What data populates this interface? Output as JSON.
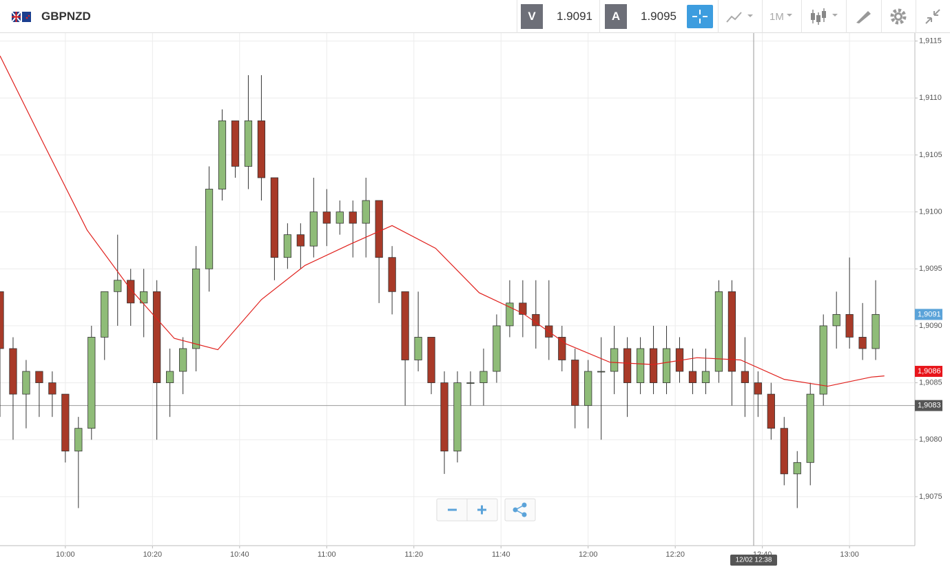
{
  "header": {
    "symbol": "GBPNZD",
    "sell_label": "V",
    "sell_price": "1.9091",
    "buy_label": "A",
    "buy_price": "1.9095",
    "timeframe": "1M"
  },
  "chart_data": {
    "type": "candlestick",
    "x": [
      "09:45",
      "09:48",
      "09:51",
      "09:54",
      "09:57",
      "10:00",
      "10:03",
      "10:06",
      "10:09",
      "10:12",
      "10:15",
      "10:18",
      "10:21",
      "10:24",
      "10:27",
      "10:30",
      "10:33",
      "10:36",
      "10:39",
      "10:42",
      "10:45",
      "10:48",
      "10:51",
      "10:54",
      "10:57",
      "11:00",
      "11:03",
      "11:06",
      "11:09",
      "11:12",
      "11:15",
      "11:18",
      "11:21",
      "11:24",
      "11:27",
      "11:30",
      "11:33",
      "11:36",
      "11:39",
      "11:42",
      "11:45",
      "11:48",
      "11:51",
      "11:54",
      "11:57",
      "12:00",
      "12:03",
      "12:06",
      "12:09",
      "12:12",
      "12:15",
      "12:18",
      "12:21",
      "12:24",
      "12:27",
      "12:30",
      "12:33",
      "12:36",
      "12:39",
      "12:42",
      "12:45",
      "12:48",
      "12:51",
      "12:54",
      "12:57",
      "13:00",
      "13:03",
      "13:06"
    ],
    "open": [
      1.9093,
      1.9088,
      1.9084,
      1.9086,
      1.9085,
      1.9084,
      1.9079,
      1.9081,
      1.9089,
      1.9093,
      1.9094,
      1.9092,
      1.9093,
      1.9085,
      1.9086,
      1.9088,
      1.9095,
      1.9102,
      1.9108,
      1.9104,
      1.9108,
      1.9103,
      1.9096,
      1.9098,
      1.9097,
      1.91,
      1.9099,
      1.91,
      1.9099,
      1.9101,
      1.9096,
      1.9093,
      1.9087,
      1.9089,
      1.9085,
      1.9079,
      1.9085,
      1.9085,
      1.9086,
      1.909,
      1.9092,
      1.9091,
      1.909,
      1.9089,
      1.9087,
      1.9083,
      1.9086,
      1.9086,
      1.9088,
      1.9085,
      1.9088,
      1.9085,
      1.9088,
      1.9086,
      1.9085,
      1.9086,
      1.9093,
      1.9086,
      1.9085,
      1.9084,
      1.9081,
      1.9077,
      1.9078,
      1.9084,
      1.909,
      1.9091,
      1.9089,
      1.9088
    ],
    "high": [
      1.9093,
      1.9089,
      1.9087,
      1.9086,
      1.9086,
      1.9084,
      1.9082,
      1.909,
      1.9093,
      1.9098,
      1.9095,
      1.9095,
      1.9094,
      1.9088,
      1.9089,
      1.9097,
      1.9104,
      1.9109,
      1.9108,
      1.9112,
      1.9112,
      1.9103,
      1.9099,
      1.9099,
      1.9103,
      1.9102,
      1.9101,
      1.9101,
      1.9103,
      1.9101,
      1.9097,
      1.9093,
      1.9093,
      1.9089,
      1.9086,
      1.9086,
      1.9086,
      1.9088,
      1.9091,
      1.9094,
      1.9094,
      1.9094,
      1.9094,
      1.909,
      1.9088,
      1.9087,
      1.9089,
      1.909,
      1.9089,
      1.9089,
      1.909,
      1.909,
      1.9089,
      1.9088,
      1.9088,
      1.9094,
      1.9094,
      1.9089,
      1.9086,
      1.9085,
      1.9082,
      1.9079,
      1.9085,
      1.9091,
      1.9093,
      1.9096,
      1.9092,
      1.9094
    ],
    "low": [
      1.9082,
      1.908,
      1.9081,
      1.9082,
      1.9082,
      1.9078,
      1.9074,
      1.908,
      1.9087,
      1.909,
      1.909,
      1.9089,
      1.908,
      1.9082,
      1.9084,
      1.9086,
      1.9093,
      1.9101,
      1.9103,
      1.9102,
      1.9101,
      1.9094,
      1.9095,
      1.9095,
      1.9096,
      1.9097,
      1.9098,
      1.9096,
      1.9096,
      1.9092,
      1.9091,
      1.9083,
      1.9086,
      1.9084,
      1.9077,
      1.9078,
      1.9083,
      1.9083,
      1.9085,
      1.9089,
      1.9089,
      1.9088,
      1.9087,
      1.9086,
      1.9081,
      1.9081,
      1.908,
      1.9084,
      1.9082,
      1.9084,
      1.9084,
      1.9084,
      1.9085,
      1.9084,
      1.9084,
      1.9085,
      1.9083,
      1.9082,
      1.9082,
      1.908,
      1.9076,
      1.9074,
      1.9076,
      1.9083,
      1.9088,
      1.9088,
      1.9087,
      1.9087
    ],
    "close": [
      1.9088,
      1.9084,
      1.9086,
      1.9085,
      1.9084,
      1.9079,
      1.9081,
      1.9089,
      1.9093,
      1.9094,
      1.9092,
      1.9093,
      1.9085,
      1.9086,
      1.9088,
      1.9095,
      1.9102,
      1.9108,
      1.9104,
      1.9108,
      1.9103,
      1.9096,
      1.9098,
      1.9097,
      1.91,
      1.9099,
      1.91,
      1.9099,
      1.9101,
      1.9096,
      1.9093,
      1.9087,
      1.9089,
      1.9085,
      1.9079,
      1.9085,
      1.9085,
      1.9086,
      1.909,
      1.9092,
      1.9091,
      1.909,
      1.9089,
      1.9087,
      1.9083,
      1.9086,
      1.9086,
      1.9088,
      1.9085,
      1.9088,
      1.9085,
      1.9088,
      1.9086,
      1.9085,
      1.9086,
      1.9093,
      1.9086,
      1.9085,
      1.9084,
      1.9081,
      1.9077,
      1.9078,
      1.9084,
      1.909,
      1.9091,
      1.9089,
      1.9088,
      1.9091
    ],
    "up_color": "#8fbc78",
    "down_color": "#a83a28",
    "moving_average": {
      "color": "#e0201c",
      "x": [
        "09:45",
        "09:55",
        "10:05",
        "10:15",
        "10:25",
        "10:35",
        "10:45",
        "10:55",
        "11:05",
        "11:15",
        "11:25",
        "11:35",
        "11:45",
        "11:55",
        "12:05",
        "12:15",
        "12:25",
        "12:35",
        "12:45",
        "12:55",
        "13:05",
        "13:08"
      ],
      "values": [
        1.91137,
        1.9106,
        1.90984,
        1.90932,
        1.90889,
        1.90879,
        1.90923,
        1.90953,
        1.90971,
        1.90988,
        1.90968,
        1.90929,
        1.90911,
        1.90884,
        1.90868,
        1.90866,
        1.90872,
        1.9087,
        1.90853,
        1.90847,
        1.90855,
        1.90856
      ]
    },
    "xlim": [
      "09:45",
      "13:15"
    ],
    "xticks": [
      "10:00",
      "10:20",
      "10:40",
      "11:00",
      "11:20",
      "11:40",
      "12:00",
      "12:20",
      "12:40",
      "13:00"
    ],
    "ylim": [
      1.90707,
      1.91157
    ],
    "yticks": [
      {
        "value": 1.9075,
        "label": "1,9075"
      },
      {
        "value": 1.908,
        "label": "1,9080"
      },
      {
        "value": 1.9085,
        "label": "1,9085"
      },
      {
        "value": 1.909,
        "label": "1,9090"
      },
      {
        "value": 1.9095,
        "label": "1,9095"
      },
      {
        "value": 1.91,
        "label": "1,9100"
      },
      {
        "value": 1.9105,
        "label": "1,9105"
      },
      {
        "value": 1.911,
        "label": "1,9110"
      },
      {
        "value": 1.9115,
        "label": "1,9115"
      }
    ],
    "grid": true,
    "price_tags": [
      {
        "value": 1.9091,
        "label": "1,9091",
        "color": "#5ba3d9"
      },
      {
        "value": 1.9086,
        "label": "1,9086",
        "color": "#e8151b"
      }
    ],
    "crosshair": {
      "x": "12:38",
      "x_label": "12/02 12:38",
      "y": {
        "value": 1.9083,
        "label": "1,9083"
      }
    }
  }
}
